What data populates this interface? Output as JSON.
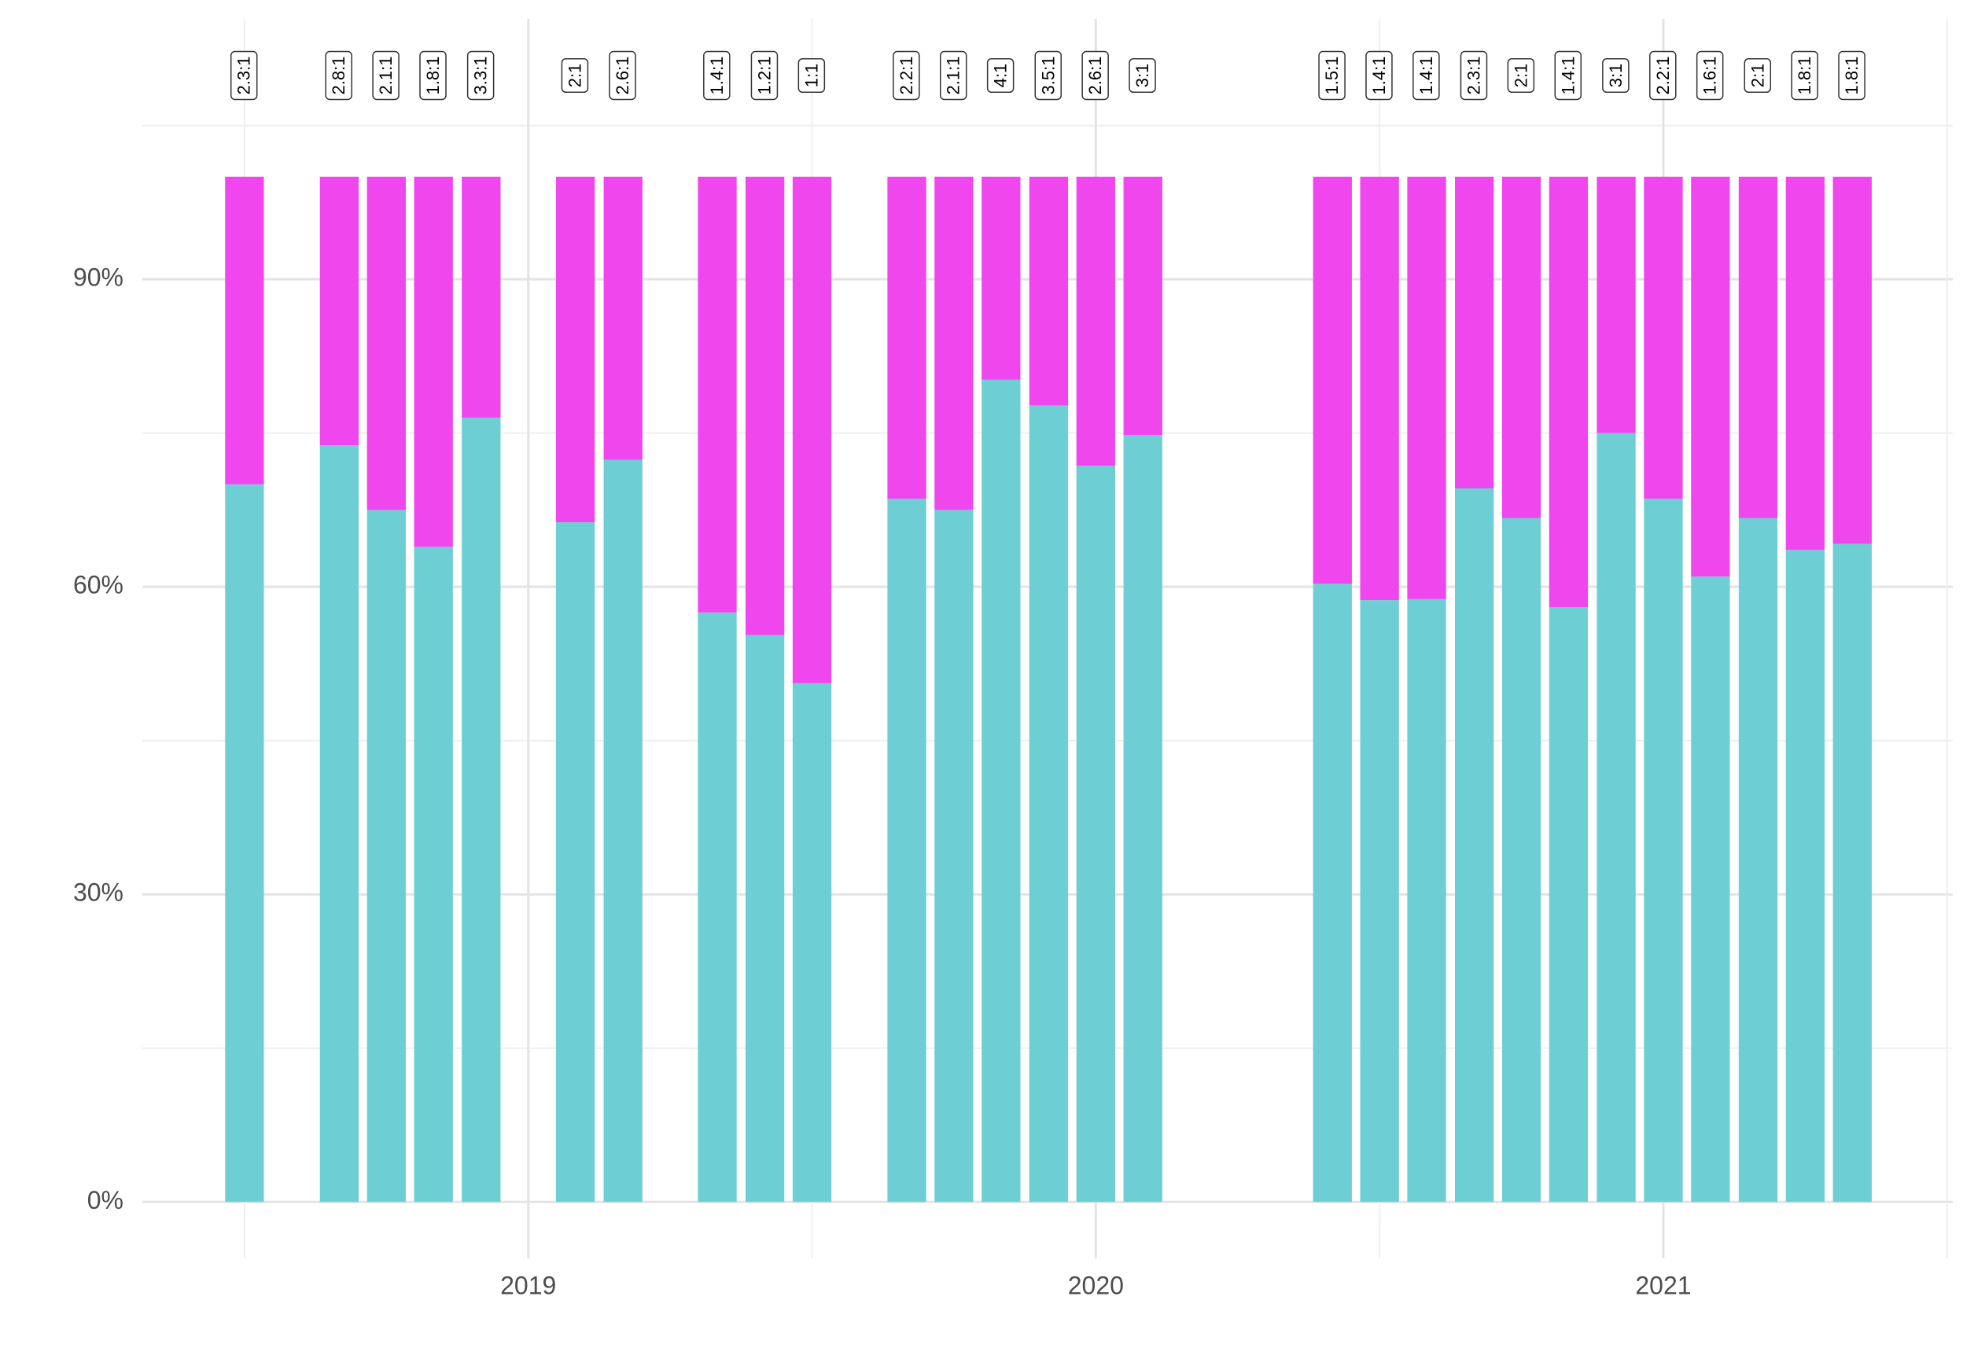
{
  "chart_data": {
    "type": "stacked-bar",
    "x": [
      2018.5,
      2018.667,
      2018.75,
      2018.833,
      2018.917,
      2019.083,
      2019.167,
      2019.333,
      2019.417,
      2019.5,
      2019.667,
      2019.75,
      2019.833,
      2019.917,
      2020.0,
      2020.083,
      2020.417,
      2020.5,
      2020.583,
      2020.667,
      2020.75,
      2020.833,
      2020.917,
      2021.0,
      2021.083,
      2021.167,
      2021.25,
      2021.333
    ],
    "series": [
      {
        "color": "#6dcfd3",
        "values": [
          70.0,
          73.8,
          67.5,
          63.9,
          76.5,
          66.3,
          72.4,
          57.5,
          55.3,
          50.6,
          68.6,
          67.5,
          80.2,
          77.7,
          71.8,
          74.8,
          60.3,
          58.7,
          58.8,
          69.6,
          66.7,
          58.0,
          75.0,
          68.6,
          61.0,
          66.7,
          63.6,
          64.2
        ]
      },
      {
        "color": "#f046ee",
        "values": [
          30.0,
          26.2,
          32.5,
          36.1,
          23.5,
          33.7,
          27.6,
          42.5,
          44.7,
          49.4,
          31.4,
          32.5,
          19.8,
          22.3,
          28.2,
          25.2,
          39.7,
          41.3,
          41.2,
          30.4,
          33.3,
          42.0,
          25.0,
          31.4,
          39.0,
          33.3,
          36.4,
          35.8
        ]
      }
    ],
    "labels": [
      "2.3:1",
      "2.8:1",
      "2.1:1",
      "1.8:1",
      "3.3:1",
      "2:1",
      "2.6:1",
      "1.4:1",
      "1.2:1",
      "1:1",
      "2.2:1",
      "2.1:1",
      "4:1",
      "3.5:1",
      "2.6:1",
      "3:1",
      "1.5:1",
      "1.4:1",
      "1.4:1",
      "2.3:1",
      "2:1",
      "1.4:1",
      "3:1",
      "2.2:1",
      "1.6:1",
      "2:1",
      "1.8:1",
      "1.8:1"
    ],
    "xlim": [
      2018.32,
      2021.51
    ],
    "xticks": [
      2019,
      2020,
      2021
    ],
    "ylim": [
      -5.5,
      115.4
    ],
    "yticks": [
      {
        "value": 0,
        "label": "0%"
      },
      {
        "value": 30,
        "label": "30%"
      },
      {
        "value": 60,
        "label": "60%"
      },
      {
        "value": 90,
        "label": "90%"
      }
    ],
    "grid": true
  }
}
